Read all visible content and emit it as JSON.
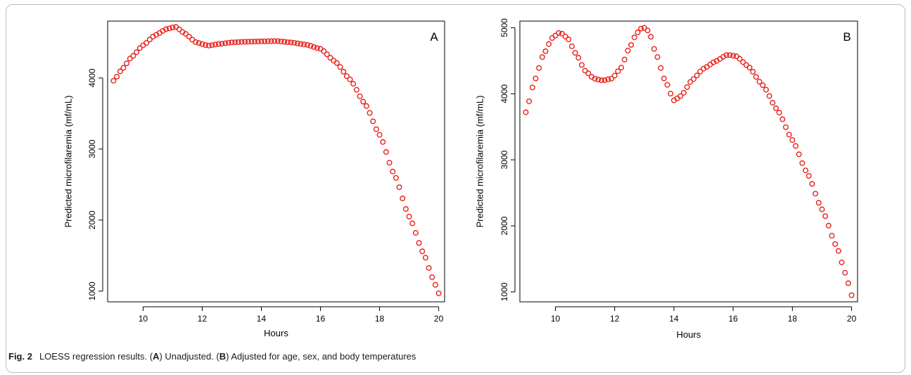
{
  "caption": {
    "figure_label": "Fig. 2",
    "segments": [
      {
        "text": "LOESS regression results. (",
        "bold": false
      },
      {
        "text": "A",
        "bold": true
      },
      {
        "text": ") Unadjusted. (",
        "bold": false
      },
      {
        "text": "B",
        "bold": true
      },
      {
        "text": ") Adjusted for age, sex, and body temperatures",
        "bold": false
      }
    ]
  },
  "chart_data": [
    {
      "type": "scatter",
      "panel_label": "A",
      "xlabel": "Hours",
      "ylabel": "Predicted microfilaremia (mf/mL)",
      "xlim": [
        8.8,
        20.2
      ],
      "ylim": [
        850,
        4800
      ],
      "x_ticks": [
        10,
        12,
        14,
        16,
        18,
        20
      ],
      "y_ticks": [
        1000,
        2000,
        3000,
        4000
      ],
      "grid": false,
      "point_color": "#e8211b",
      "marker": "open-circle",
      "x_range": [
        9,
        20
      ],
      "n_points": 100,
      "curve_knots": {
        "x": [
          9,
          9.3,
          9.6,
          10,
          10.4,
          10.8,
          11.1,
          11.4,
          11.8,
          12.2,
          12.6,
          13,
          13.5,
          14,
          14.5,
          15,
          15.5,
          16,
          16.5,
          17,
          17.5,
          18,
          18.5,
          19,
          19.5,
          19.8,
          20
        ],
        "y": [
          3960,
          4130,
          4290,
          4460,
          4600,
          4690,
          4720,
          4630,
          4500,
          4455,
          4480,
          4500,
          4510,
          4515,
          4520,
          4500,
          4470,
          4410,
          4230,
          3980,
          3640,
          3200,
          2640,
          2050,
          1520,
          1180,
          970
        ]
      }
    },
    {
      "type": "scatter",
      "panel_label": "B",
      "xlabel": "Hours",
      "ylabel": "Predicted microfilaremia (mf/mL)",
      "xlim": [
        8.8,
        20.2
      ],
      "ylim": [
        850,
        5100
      ],
      "x_ticks": [
        10,
        12,
        14,
        16,
        18,
        20
      ],
      "y_ticks": [
        1000,
        2000,
        3000,
        4000,
        5000
      ],
      "grid": false,
      "point_color": "#e8211b",
      "marker": "open-circle",
      "x_range": [
        9,
        20
      ],
      "n_points": 100,
      "curve_knots": {
        "x": [
          9,
          9.3,
          9.6,
          9.9,
          10.15,
          10.4,
          10.7,
          11.0,
          11.3,
          11.6,
          11.9,
          12.2,
          12.5,
          12.75,
          12.95,
          13.15,
          13.4,
          13.7,
          14.0,
          14.25,
          14.6,
          15.0,
          15.4,
          15.8,
          16.1,
          16.5,
          17.0,
          17.5,
          18.0,
          18.5,
          19.0,
          19.5,
          19.8,
          20.0
        ],
        "y": [
          3720,
          4200,
          4600,
          4850,
          4930,
          4850,
          4600,
          4350,
          4230,
          4200,
          4230,
          4380,
          4700,
          4920,
          5010,
          4950,
          4600,
          4200,
          3900,
          3970,
          4200,
          4380,
          4490,
          4590,
          4570,
          4420,
          4130,
          3750,
          3300,
          2800,
          2250,
          1680,
          1270,
          950
        ]
      }
    }
  ]
}
